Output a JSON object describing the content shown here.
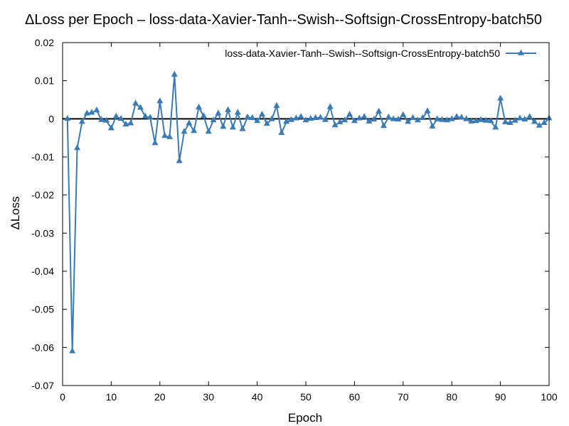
{
  "chart_data": {
    "type": "line",
    "title": "ΔLoss per Epoch – loss-data-Xavier-Tanh--Swish--Softsign-CrossEntropy-batch50",
    "xlabel": "Epoch",
    "ylabel": "ΔLoss",
    "xlim": [
      0,
      100
    ],
    "ylim": [
      -0.07,
      0.02
    ],
    "xticks": [
      0,
      10,
      20,
      30,
      40,
      50,
      60,
      70,
      80,
      90,
      100
    ],
    "yticks": [
      -0.07,
      -0.06,
      -0.05,
      -0.04,
      -0.03,
      -0.02,
      -0.01,
      0,
      0.01,
      0.02
    ],
    "ytick_labels": [
      "-0.07",
      "-0.06",
      "-0.05",
      "-0.04",
      "-0.03",
      "-0.02",
      "-0.01",
      "0",
      "0.01",
      "0.02"
    ],
    "grid": false,
    "legend_position": "top-right",
    "zero_line": true,
    "colors": {
      "series": "#3a7ab5",
      "zero_line": "#000000",
      "axes": "#000000"
    },
    "series": [
      {
        "name": "loss-data-Xavier-Tanh--Swish--Softsign-CrossEntropy-batch50",
        "x": [
          1,
          2,
          3,
          4,
          5,
          6,
          7,
          8,
          9,
          10,
          11,
          12,
          13,
          14,
          15,
          16,
          17,
          18,
          19,
          20,
          21,
          22,
          23,
          24,
          25,
          26,
          27,
          28,
          29,
          30,
          31,
          32,
          33,
          34,
          35,
          36,
          37,
          38,
          39,
          40,
          41,
          42,
          43,
          44,
          45,
          46,
          47,
          48,
          49,
          50,
          51,
          52,
          53,
          54,
          55,
          56,
          57,
          58,
          59,
          60,
          61,
          62,
          63,
          64,
          65,
          66,
          67,
          68,
          69,
          70,
          71,
          72,
          73,
          74,
          75,
          76,
          77,
          78,
          79,
          80,
          81,
          82,
          83,
          84,
          85,
          86,
          87,
          88,
          89,
          90,
          91,
          92,
          93,
          94,
          95,
          96,
          97,
          98,
          99,
          100
        ],
        "y": [
          0,
          -0.061,
          -0.0077,
          -0.0008,
          0.0014,
          0.0016,
          0.0022,
          -0.0003,
          -0.0005,
          -0.0025,
          0.0006,
          0,
          -0.0015,
          -0.0012,
          0.004,
          0.0029,
          0.0006,
          0.0003,
          -0.0064,
          0.0046,
          -0.0045,
          -0.0048,
          0.0116,
          -0.0111,
          -0.0034,
          -0.0012,
          -0.0032,
          0.003,
          0.0007,
          -0.0034,
          -0.0004,
          0.0014,
          -0.0021,
          0.0023,
          -0.0023,
          0.0016,
          -0.0027,
          0.0004,
          0.0002,
          -0.0006,
          0.0011,
          -0.0013,
          -0.0001,
          0.0034,
          -0.0037,
          -0.0008,
          -0.0003,
          0.0001,
          0.0005,
          -0.0004,
          0,
          0.0002,
          0.0003,
          -0.0003,
          0.0031,
          -0.0017,
          -0.0009,
          -0.0004,
          0.0011,
          -0.0006,
          0.0001,
          0.0005,
          -0.0007,
          -0.0002,
          0.0019,
          -0.0019,
          0.0004,
          -0.0001,
          -0.0002,
          0.001,
          -0.0008,
          0.0002,
          -0.0004,
          0.0002,
          0.002,
          -0.002,
          -0.0001,
          -0.0003,
          -0.0004,
          -0.0001,
          0.0005,
          0.0003,
          -0.0001,
          -0.0007,
          -0.0006,
          -0.0003,
          -0.0005,
          -0.0006,
          -0.0023,
          0.0053,
          -0.0009,
          -0.0011,
          -0.0005,
          0.0001,
          -0.0002,
          0.0005,
          -0.0008,
          -0.0018,
          -0.0011,
          0.0001
        ]
      }
    ]
  }
}
